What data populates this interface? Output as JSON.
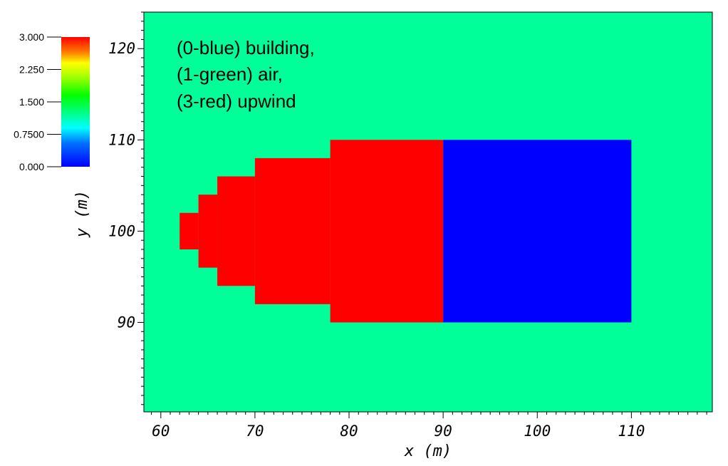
{
  "chart_data": {
    "type": "heatmap",
    "title": "",
    "annotation_lines": [
      "(0-blue) building,",
      "(1-green) air,",
      "(3-red) upwind"
    ],
    "xlabel": "x (m)",
    "ylabel": "y (m)",
    "xlim": [
      58.2,
      118.6
    ],
    "ylim": [
      80.2,
      124.0
    ],
    "x_ticks": [
      "60",
      "70",
      "80",
      "90",
      "100",
      "110"
    ],
    "y_ticks": [
      "90",
      "100",
      "110",
      "120"
    ],
    "background_value": 1,
    "colorbar": {
      "min": 0,
      "max": 3,
      "tick_values": [
        3.0,
        2.25,
        1.5,
        0.75,
        0.0
      ],
      "tick_labels": [
        "3.000",
        "2.250",
        "1.500",
        "0.7500",
        "0.000"
      ]
    },
    "regions": [
      {
        "label": "building",
        "value": 0,
        "color": "#0000ff",
        "cells": [
          {
            "x": [
              90,
              110
            ],
            "y": [
              90,
              110
            ]
          }
        ]
      },
      {
        "label": "upwind",
        "value": 3,
        "color": "#ff0000",
        "cells": [
          {
            "x": [
              78,
              90
            ],
            "y": [
              90,
              110
            ]
          },
          {
            "x": [
              70,
              78
            ],
            "y": [
              92,
              108
            ]
          },
          {
            "x": [
              66,
              70
            ],
            "y": [
              94,
              106
            ]
          },
          {
            "x": [
              64,
              66
            ],
            "y": [
              96,
              104
            ]
          },
          {
            "x": [
              62,
              64
            ],
            "y": [
              98,
              102
            ]
          }
        ]
      }
    ],
    "colors": {
      "air": "#00ff99",
      "building": "#0000ff",
      "upwind": "#ff0000"
    }
  }
}
